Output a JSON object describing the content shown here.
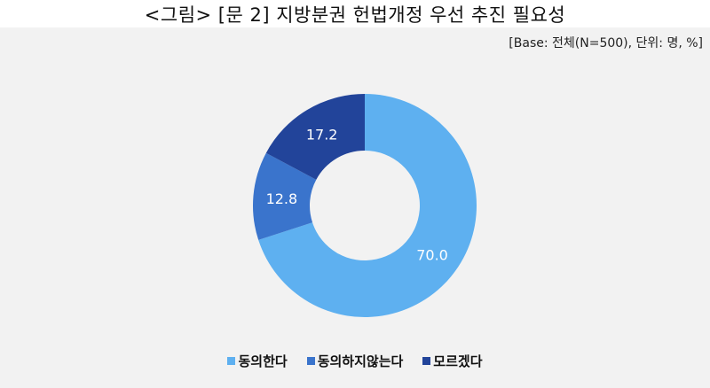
{
  "title": "<그림> [문 2] 지방분권 헌법개정 우선 추진 필요성",
  "base_note": "[Base: 전체(N=500), 단위: 명, %]",
  "legend": [
    {
      "label": "동의한다",
      "color": "#5eb0f0"
    },
    {
      "label": "동의하지않는다",
      "color": "#3a74cc"
    },
    {
      "label": "모르겠다",
      "color": "#22449a"
    }
  ],
  "chart_data": {
    "type": "pie",
    "subtype": "donut",
    "title": "<그림> [문 2] 지방분권 헌법개정 우선 추진 필요성",
    "subtitle": "[Base: 전체(N=500), 단위: 명, %]",
    "categories": [
      "동의한다",
      "동의하지않는다",
      "모르겠다"
    ],
    "values": [
      70.0,
      12.8,
      17.2
    ],
    "data_labels": [
      "70.0",
      "12.8",
      "17.2"
    ],
    "colors": [
      "#5eb0f0",
      "#3a74cc",
      "#22449a"
    ],
    "legend_position": "bottom",
    "start_angle": "12 o'clock, clockwise"
  }
}
